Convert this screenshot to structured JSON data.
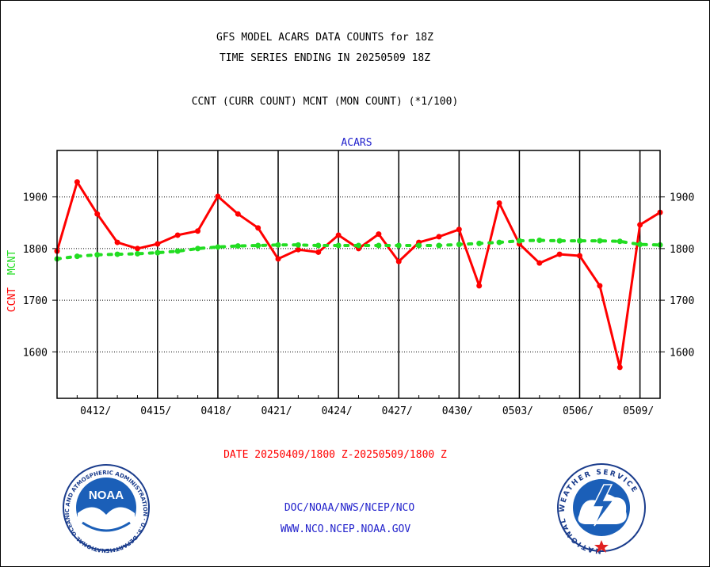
{
  "header": {
    "title_line1": "GFS MODEL ACARS DATA COUNTS for 18Z",
    "title_line2": "TIME SERIES ENDING IN 20250509 18Z",
    "subtitle": "CCNT (CURR COUNT) MCNT (MON COUNT) (*1/100)"
  },
  "footer": {
    "date_range": "DATE 20250409/1800 Z-20250509/1800 Z",
    "org_line": "DOC/NOAA/NWS/NCEP/NCO",
    "website": "WWW.NCO.NCEP.NOAA.GOV"
  },
  "logos": {
    "noaa": {
      "text": "NOAA",
      "ring_text": "NATIONAL OCEANIC AND ATMOSPHERIC ADMINISTRATION · U.S. DEPARTMENT OF COMMERCE ·"
    },
    "nws": {
      "ring_text": "NATIONAL WEATHER SERVICE"
    }
  },
  "colors": {
    "ccnt": "#ff0000",
    "mcnt": "#22dd22",
    "title": "#000000",
    "panel_title": "#2222cc",
    "date": "#ff0000",
    "links": "#2222cc"
  },
  "chart_data": {
    "type": "line",
    "panel_title": "ACARS",
    "ylabel_left": [
      "CCNT",
      "MCNT"
    ],
    "ylim": [
      1510,
      1990
    ],
    "yticks": [
      1600,
      1700,
      1800,
      1900
    ],
    "xlim": [
      0,
      30
    ],
    "x_ticks": [
      {
        "x": 2,
        "label": "0412/"
      },
      {
        "x": 5,
        "label": "0415/"
      },
      {
        "x": 8,
        "label": "0418/"
      },
      {
        "x": 11,
        "label": "0421/"
      },
      {
        "x": 14,
        "label": "0424/"
      },
      {
        "x": 17,
        "label": "0427/"
      },
      {
        "x": 20,
        "label": "0430/"
      },
      {
        "x": 23,
        "label": "0503/"
      },
      {
        "x": 26,
        "label": "0506/"
      },
      {
        "x": 29,
        "label": "0509/"
      }
    ],
    "grid": true,
    "x_dates": [
      "0409",
      "0410",
      "0411",
      "0412",
      "0413",
      "0414",
      "0415",
      "0416",
      "0417",
      "0418",
      "0419",
      "0420",
      "0421",
      "0422",
      "0423",
      "0424",
      "0425",
      "0426",
      "0427",
      "0428",
      "0429",
      "0430",
      "0501",
      "0502",
      "0503",
      "0504",
      "0505",
      "0506",
      "0507",
      "0508",
      "0509"
    ],
    "series": [
      {
        "name": "CCNT",
        "style": "solid",
        "values": [
          1795,
          1929,
          1867,
          1812,
          1800,
          1809,
          1826,
          1834,
          1901,
          1867,
          1840,
          1780,
          1798,
          1793,
          1826,
          1800,
          1828,
          1775,
          1812,
          1823,
          1837,
          1728,
          1888,
          1809,
          1772,
          1789,
          1786,
          1728,
          1570,
          1846,
          1870
        ]
      },
      {
        "name": "MCNT",
        "style": "dashed",
        "values": [
          1780,
          1785,
          1788,
          1789,
          1790,
          1792,
          1795,
          1800,
          1803,
          1805,
          1806,
          1807,
          1807,
          1806,
          1806,
          1806,
          1806,
          1806,
          1806,
          1806,
          1808,
          1810,
          1812,
          1815,
          1816,
          1815,
          1815,
          1815,
          1814,
          1808,
          1807
        ]
      }
    ]
  }
}
